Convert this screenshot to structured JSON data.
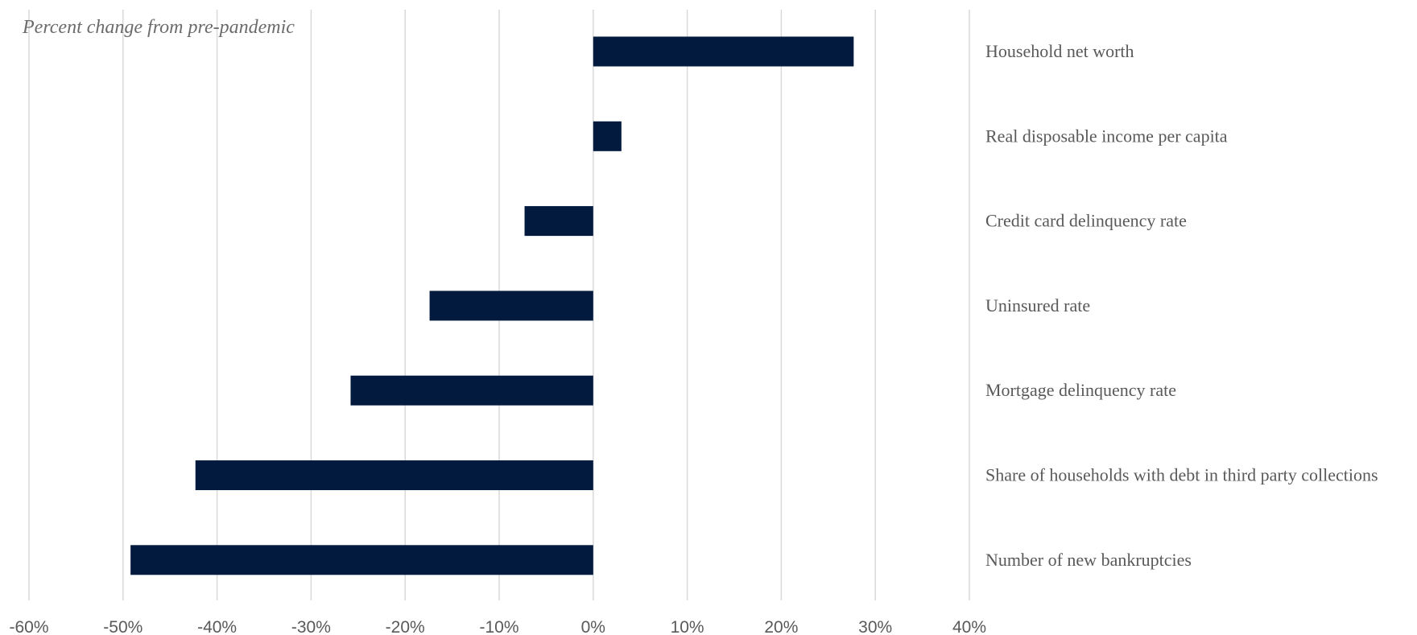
{
  "chart_data": {
    "type": "bar",
    "orientation": "horizontal",
    "subtitle": "Percent change from pre-pandemic",
    "categories": [
      "Household net worth",
      "Real disposable income per capita",
      "Credit card delinquency rate",
      "Uninsured rate",
      "Mortgage delinquency rate",
      "Share of households with debt in third party collections",
      "Number of new bankruptcies"
    ],
    "values": [
      27.7,
      3.0,
      -7.3,
      -17.4,
      -25.8,
      -42.3,
      -49.2
    ],
    "xlim": [
      -60,
      40
    ],
    "x_ticks": [
      -60,
      -50,
      -40,
      -30,
      -20,
      -10,
      0,
      10,
      20,
      30,
      40
    ],
    "x_tick_labels": [
      "-60%",
      "-50%",
      "-40%",
      "-30%",
      "-20%",
      "-10%",
      "0%",
      "10%",
      "20%",
      "30%",
      "40%"
    ],
    "grid": true,
    "bar_color": "#031a3f",
    "category_labels_position": "right"
  }
}
